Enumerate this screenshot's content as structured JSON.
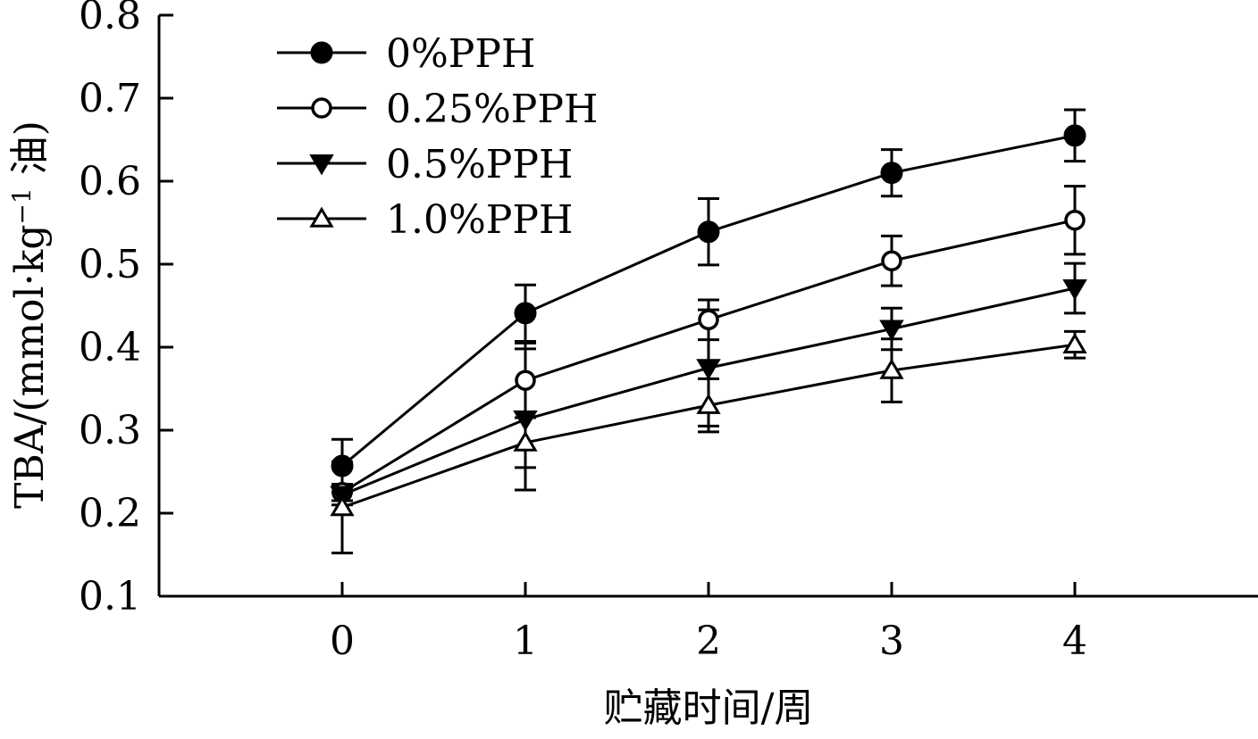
{
  "chart_data": {
    "type": "line",
    "title": "",
    "xlabel": "贮藏时间/周",
    "ylabel": "TBA/(mmol·kg⁻¹ 油)",
    "ylabel_parts": {
      "prefix": "TBA/(mmol·kg",
      "sup": "−1",
      "suffix": " 油)"
    },
    "x": [
      0,
      1,
      2,
      3,
      4
    ],
    "x_ticks": [
      "0",
      "1",
      "2",
      "3",
      "4"
    ],
    "xlim": [
      -1,
      5
    ],
    "ylim": [
      0.1,
      0.8
    ],
    "y_ticks": [
      "0.1",
      "0.2",
      "0.3",
      "0.4",
      "0.5",
      "0.6",
      "0.7",
      "0.8"
    ],
    "grid": false,
    "legend_position": "top-left",
    "series": [
      {
        "name": "0%PPH",
        "marker": "filled-circle",
        "values": [
          0.257,
          0.441,
          0.539,
          0.61,
          0.655
        ],
        "errors": [
          0.032,
          0.034,
          0.04,
          0.028,
          0.031
        ]
      },
      {
        "name": "0.25%PPH",
        "marker": "open-circle",
        "values": [
          0.225,
          0.36,
          0.433,
          0.504,
          0.553
        ],
        "errors": [
          0.01,
          0.045,
          0.024,
          0.03,
          0.041
        ]
      },
      {
        "name": "0.5%PPH",
        "marker": "filled-triangle-down",
        "values": [
          0.222,
          0.313,
          0.375,
          0.422,
          0.471
        ],
        "errors": [
          0.012,
          0.085,
          0.07,
          0.025,
          0.03
        ]
      },
      {
        "name": "1.0%PPH",
        "marker": "open-triangle-up",
        "values": [
          0.207,
          0.285,
          0.33,
          0.372,
          0.403
        ],
        "errors": [
          0.055,
          0.03,
          0.032,
          0.038,
          0.016
        ]
      }
    ]
  }
}
